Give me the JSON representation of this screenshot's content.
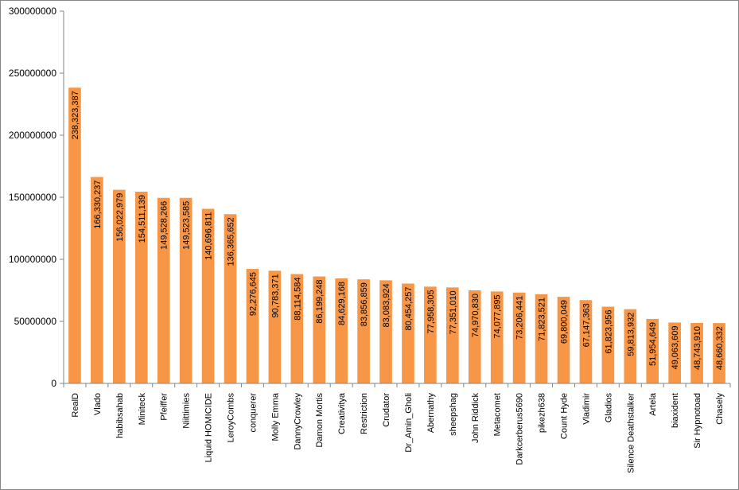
{
  "chart_data": {
    "type": "bar",
    "title": "",
    "xlabel": "",
    "ylabel": "",
    "ylim": [
      0,
      300000000
    ],
    "yticks": [
      0,
      50000000,
      100000000,
      150000000,
      200000000,
      250000000,
      300000000
    ],
    "ytick_labels": [
      "0",
      "50000000",
      "100000000",
      "150000000",
      "200000000",
      "250000000",
      "300000000"
    ],
    "grid": false,
    "legend": "none",
    "bar_color": "#F79646",
    "categories": [
      "RealD",
      "Vlado",
      "habibsahab",
      "Miniteck",
      "Pfeiffer",
      "Niittimies",
      "Liquid HOMICIDE",
      "LeroyCombs",
      "conquerer",
      "Molly Emma",
      "DannyCrowley",
      "Damon Mortis",
      "Creativitya",
      "Restriction",
      "Crudator",
      "Dr_Amin_Gholi",
      "Abernathy",
      "sheepshag",
      "John Riddick",
      "Metacomet",
      "Darkcerberus5690",
      "pikezh638",
      "Count Hyde",
      "Vladimir",
      "Gladios",
      "Silence Deathstalker",
      "Artela",
      "biaxident",
      "Sir Hypnotoad",
      "Chasely"
    ],
    "values": [
      238323387,
      166330237,
      156022979,
      154511139,
      149528266,
      149523585,
      140696811,
      136365652,
      92276645,
      90783371,
      88114584,
      86199248,
      84629168,
      83856859,
      83083924,
      80454257,
      77958305,
      77351010,
      74970830,
      74077895,
      73206441,
      71823521,
      69800049,
      67147363,
      61823956,
      59813932,
      51954649,
      49063609,
      48743910,
      48660332
    ],
    "data_labels": [
      "238,323,387",
      "166,330,237",
      "156,022,979",
      "154,511,139",
      "149,528,266",
      "149,523,585",
      "140,696,811",
      "136,365,652",
      "92,276,645",
      "90,783,371",
      "88,114,584",
      "86,199,248",
      "84,629,168",
      "83,856,859",
      "83,083,924",
      "80,454,257",
      "77,958,305",
      "77,351,010",
      "74,970,830",
      "74,077,895",
      "73,206,441",
      "71,823,521",
      "69,800,049",
      "67,147,363",
      "61,823,956",
      "59,813,932",
      "51,954,649",
      "49,063,609",
      "48,743,910",
      "48,660,332"
    ]
  }
}
